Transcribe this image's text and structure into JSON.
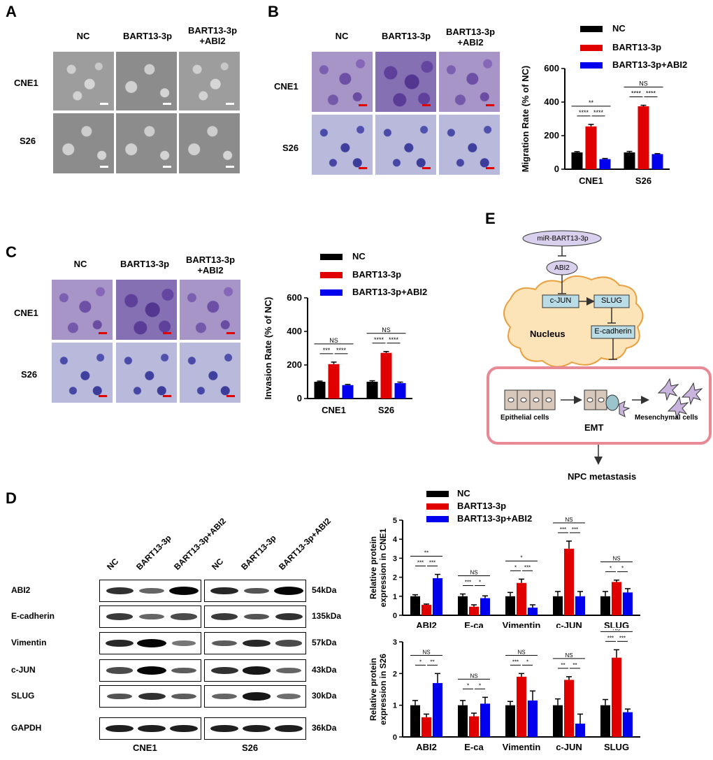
{
  "panels": {
    "a": {
      "letter": "A",
      "headers": [
        "NC",
        "BART13-3p",
        "BART13-3p\n+ABI2"
      ],
      "rows": [
        "CNE1",
        "S26"
      ]
    },
    "b": {
      "letter": "B",
      "headers": [
        "NC",
        "BART13-3p",
        "BART13-3p\n+ABI2"
      ],
      "rows": [
        "CNE1",
        "S26"
      ]
    },
    "c": {
      "letter": "C",
      "headers": [
        "NC",
        "BART13-3p",
        "BART13-3p\n+ABI2"
      ],
      "rows": [
        "CNE1",
        "S26"
      ]
    },
    "d": {
      "letter": "D"
    },
    "e": {
      "letter": "E"
    }
  },
  "legend": {
    "entries": [
      "NC",
      "BART13-3p",
      "BART13-3p+ABI2"
    ]
  },
  "colors": {
    "nc": "#000000",
    "bart": "#e00000",
    "bart_abi2": "#0000ee"
  },
  "western": {
    "lanes": [
      "NC",
      "BART13-3p",
      "BART13-3p+ABI2",
      "NC",
      "BART13-3p",
      "BART13-3p+ABI2"
    ],
    "proteins": [
      "ABI2",
      "E-cadherin",
      "Vimentin",
      "c-JUN",
      "SLUG",
      "GAPDH"
    ],
    "kda": [
      "54kDa",
      "135kDa",
      "57kDa",
      "43kDa",
      "30kDa",
      "36kDa"
    ],
    "cells": [
      "CNE1",
      "S26"
    ]
  },
  "diagram": {
    "mir": "miR-BART13-3p",
    "abi2": "ABI2",
    "cjun": "c-JUN",
    "slug": "SLUG",
    "nucleus": "Nucleus",
    "ecad": "E-cadherin",
    "epi": "Epithelial cells",
    "emt": "EMT",
    "mes": "Mesenchymal cells",
    "npc": "NPC metastasis"
  },
  "chart_data": [
    {
      "id": "migration",
      "type": "bar",
      "categories": [
        "CNE1",
        "S26"
      ],
      "series": [
        {
          "name": "NC",
          "values": [
            100,
            100
          ],
          "errors": [
            5,
            6
          ]
        },
        {
          "name": "BART13-3p",
          "values": [
            255,
            375
          ],
          "errors": [
            12,
            6
          ]
        },
        {
          "name": "BART13-3p+ABI2",
          "values": [
            60,
            90
          ],
          "errors": [
            4,
            3
          ]
        }
      ],
      "ylabel": "Migration Rate (% of NC)",
      "ylim": [
        0,
        600
      ],
      "yticks": [
        0,
        200,
        400,
        600
      ],
      "significance": [
        {
          "cat": 0,
          "from": 0,
          "to": 1,
          "label": "****",
          "level": 1
        },
        {
          "cat": 0,
          "from": 1,
          "to": 2,
          "label": "****",
          "level": 1
        },
        {
          "cat": 0,
          "from": 0,
          "to": 2,
          "label": "**",
          "level": 2
        },
        {
          "cat": 1,
          "from": 0,
          "to": 1,
          "label": "****",
          "level": 1
        },
        {
          "cat": 1,
          "from": 1,
          "to": 2,
          "label": "****",
          "level": 1
        },
        {
          "cat": 1,
          "from": 0,
          "to": 2,
          "label": "NS",
          "level": 2
        }
      ]
    },
    {
      "id": "invasion",
      "type": "bar",
      "categories": [
        "CNE1",
        "S26"
      ],
      "series": [
        {
          "name": "NC",
          "values": [
            100,
            100
          ],
          "errors": [
            4,
            6
          ]
        },
        {
          "name": "BART13-3p",
          "values": [
            205,
            272
          ],
          "errors": [
            12,
            8
          ]
        },
        {
          "name": "BART13-3p+ABI2",
          "values": [
            80,
            92
          ],
          "errors": [
            4,
            6
          ]
        }
      ],
      "ylabel": "Invasion Rate (% of NC)",
      "ylim": [
        0,
        600
      ],
      "yticks": [
        0,
        200,
        400,
        600
      ],
      "significance": [
        {
          "cat": 0,
          "from": 0,
          "to": 1,
          "label": "***",
          "level": 1
        },
        {
          "cat": 0,
          "from": 1,
          "to": 2,
          "label": "****",
          "level": 1
        },
        {
          "cat": 0,
          "from": 0,
          "to": 2,
          "label": "NS",
          "level": 2
        },
        {
          "cat": 1,
          "from": 0,
          "to": 1,
          "label": "****",
          "level": 1
        },
        {
          "cat": 1,
          "from": 1,
          "to": 2,
          "label": "****",
          "level": 1
        },
        {
          "cat": 1,
          "from": 0,
          "to": 2,
          "label": "NS",
          "level": 2
        }
      ]
    },
    {
      "id": "protein_cne1",
      "type": "bar",
      "categories": [
        "ABI2",
        "E-ca",
        "Vimentin",
        "c-JUN",
        "SLUG"
      ],
      "series": [
        {
          "name": "NC",
          "values": [
            1.0,
            1.0,
            1.0,
            1.0,
            1.0
          ],
          "errors": [
            0.08,
            0.12,
            0.2,
            0.25,
            0.25
          ]
        },
        {
          "name": "BART13-3p",
          "values": [
            0.55,
            0.45,
            1.7,
            3.5,
            1.75
          ],
          "errors": [
            0.04,
            0.1,
            0.2,
            0.4,
            0.1
          ]
        },
        {
          "name": "BART13-3p+ABI2",
          "values": [
            1.95,
            0.9,
            0.4,
            1.0,
            1.2
          ],
          "errors": [
            0.2,
            0.12,
            0.15,
            0.25,
            0.2
          ]
        }
      ],
      "ylabel": "Relative protein\nexpression in CNE1",
      "ylim": [
        0,
        5
      ],
      "yticks": [
        0,
        1,
        2,
        3,
        4,
        5
      ],
      "significance": [
        {
          "cat": 0,
          "from": 0,
          "to": 1,
          "label": "***",
          "level": 1
        },
        {
          "cat": 0,
          "from": 1,
          "to": 2,
          "label": "***",
          "level": 1
        },
        {
          "cat": 0,
          "from": 0,
          "to": 2,
          "label": "**",
          "level": 2
        },
        {
          "cat": 1,
          "from": 0,
          "to": 1,
          "label": "***",
          "level": 1
        },
        {
          "cat": 1,
          "from": 1,
          "to": 2,
          "label": "*",
          "level": 1
        },
        {
          "cat": 1,
          "from": 0,
          "to": 2,
          "label": "NS",
          "level": 2
        },
        {
          "cat": 2,
          "from": 0,
          "to": 1,
          "label": "*",
          "level": 1
        },
        {
          "cat": 2,
          "from": 1,
          "to": 2,
          "label": "***",
          "level": 1
        },
        {
          "cat": 2,
          "from": 0,
          "to": 2,
          "label": "*",
          "level": 2
        },
        {
          "cat": 3,
          "from": 0,
          "to": 1,
          "label": "***",
          "level": 1
        },
        {
          "cat": 3,
          "from": 1,
          "to": 2,
          "label": "***",
          "level": 1
        },
        {
          "cat": 3,
          "from": 0,
          "to": 2,
          "label": "NS",
          "level": 2
        },
        {
          "cat": 4,
          "from": 0,
          "to": 1,
          "label": "*",
          "level": 1
        },
        {
          "cat": 4,
          "from": 1,
          "to": 2,
          "label": "*",
          "level": 1
        },
        {
          "cat": 4,
          "from": 0,
          "to": 2,
          "label": "NS",
          "level": 2
        }
      ]
    },
    {
      "id": "protein_s26",
      "type": "bar",
      "categories": [
        "ABI2",
        "E-ca",
        "Vimentin",
        "c-JUN",
        "SLUG"
      ],
      "series": [
        {
          "name": "NC",
          "values": [
            1.0,
            1.0,
            1.0,
            1.0,
            1.0
          ],
          "errors": [
            0.15,
            0.15,
            0.12,
            0.2,
            0.18
          ]
        },
        {
          "name": "BART13-3p",
          "values": [
            0.62,
            0.65,
            1.9,
            1.8,
            2.5
          ],
          "errors": [
            0.1,
            0.1,
            0.1,
            0.1,
            0.25
          ]
        },
        {
          "name": "BART13-3p+ABI2",
          "values": [
            1.7,
            1.05,
            1.15,
            0.42,
            0.78
          ],
          "errors": [
            0.3,
            0.2,
            0.3,
            0.3,
            0.1
          ]
        }
      ],
      "ylabel": "Relative protein\nexpression in S26",
      "ylim": [
        0,
        3
      ],
      "yticks": [
        0,
        1,
        2,
        3
      ],
      "significance": [
        {
          "cat": 0,
          "from": 0,
          "to": 1,
          "label": "*",
          "level": 1
        },
        {
          "cat": 0,
          "from": 1,
          "to": 2,
          "label": "**",
          "level": 1
        },
        {
          "cat": 0,
          "from": 0,
          "to": 2,
          "label": "NS",
          "level": 2
        },
        {
          "cat": 1,
          "from": 0,
          "to": 1,
          "label": "*",
          "level": 1
        },
        {
          "cat": 1,
          "from": 1,
          "to": 2,
          "label": "*",
          "level": 1
        },
        {
          "cat": 1,
          "from": 0,
          "to": 2,
          "label": "NS",
          "level": 2
        },
        {
          "cat": 2,
          "from": 0,
          "to": 1,
          "label": "***",
          "level": 1
        },
        {
          "cat": 2,
          "from": 1,
          "to": 2,
          "label": "*",
          "level": 1
        },
        {
          "cat": 2,
          "from": 0,
          "to": 2,
          "label": "NS",
          "level": 2
        },
        {
          "cat": 3,
          "from": 0,
          "to": 1,
          "label": "**",
          "level": 1
        },
        {
          "cat": 3,
          "from": 1,
          "to": 2,
          "label": "**",
          "level": 1
        },
        {
          "cat": 3,
          "from": 0,
          "to": 2,
          "label": "NS",
          "level": 2
        },
        {
          "cat": 4,
          "from": 0,
          "to": 1,
          "label": "***",
          "level": 1
        },
        {
          "cat": 4,
          "from": 1,
          "to": 2,
          "label": "***",
          "level": 1
        },
        {
          "cat": 4,
          "from": 0,
          "to": 2,
          "label": "NS",
          "level": 2
        }
      ]
    }
  ]
}
